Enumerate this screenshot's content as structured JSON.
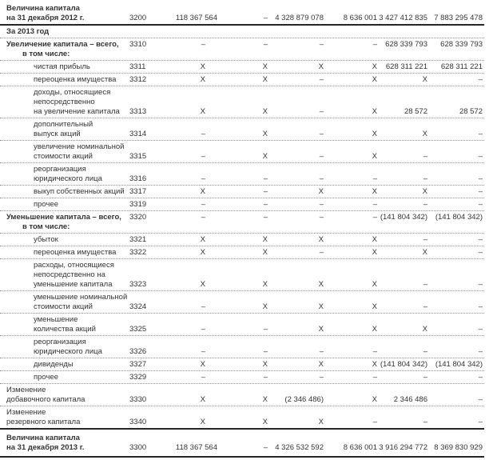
{
  "colors": {
    "text": "#333333",
    "rule_solid": "#262626",
    "rule_dotted": "#8f8f8f"
  },
  "table": {
    "rows": [
      {
        "code": "3200",
        "bold": true,
        "rule": "solid",
        "cls": "first",
        "lines": [
          "Величина капитала",
          "на 31 декабря 2012 г."
        ],
        "levels": [
          0,
          0
        ],
        "values": [
          "118 367 564",
          "–",
          "4 328 879 078",
          "8 636 001",
          "3 427 412 835",
          "7 883 295 478"
        ]
      },
      {
        "section": true,
        "bold": true,
        "lines": [
          "За 2013 год"
        ],
        "levels": [
          0
        ]
      },
      {
        "code": "3310",
        "bold": true,
        "valign": "top",
        "lines": [
          "Увеличение капитала – всего,",
          "в том числе:"
        ],
        "levels": [
          0,
          1
        ],
        "values": [
          "–",
          "–",
          "–",
          "–",
          "628 339 793",
          "628 339 793"
        ]
      },
      {
        "code": "3311",
        "lines": [
          "чистая прибыль"
        ],
        "levels": [
          2
        ],
        "values": [
          "X",
          "X",
          "X",
          "X",
          "628 311 221",
          "628 311 221"
        ]
      },
      {
        "code": "3312",
        "lines": [
          "переоценка имущества"
        ],
        "levels": [
          2
        ],
        "values": [
          "X",
          "X",
          "–",
          "X",
          "X",
          "–"
        ]
      },
      {
        "code": "3313",
        "lines": [
          "доходы, относящиеся",
          "непосредственно",
          "на увеличение капитала"
        ],
        "levels": [
          2,
          2,
          2
        ],
        "values": [
          "X",
          "X",
          "–",
          "X",
          "28 572",
          "28 572"
        ]
      },
      {
        "code": "3314",
        "lines": [
          "дополнительный",
          "выпуск акций"
        ],
        "levels": [
          2,
          2
        ],
        "values": [
          "–",
          "X",
          "–",
          "X",
          "X",
          "–"
        ]
      },
      {
        "code": "3315",
        "lines": [
          "увеличение номинальной",
          "стоимости акций"
        ],
        "levels": [
          2,
          2
        ],
        "values": [
          "–",
          "X",
          "–",
          "X",
          "–",
          "–"
        ]
      },
      {
        "code": "3316",
        "lines": [
          "реорганизация",
          "юридического лица"
        ],
        "levels": [
          2,
          2
        ],
        "values": [
          "–",
          "–",
          "–",
          "–",
          "–",
          "–"
        ]
      },
      {
        "code": "3317",
        "lines": [
          "выкуп собственных акций"
        ],
        "levels": [
          2
        ],
        "values": [
          "X",
          "–",
          "X",
          "X",
          "X",
          "–"
        ]
      },
      {
        "code": "3319",
        "lines": [
          "прочее"
        ],
        "levels": [
          2
        ],
        "values": [
          "–",
          "–",
          "–",
          "–",
          "–",
          "–"
        ]
      },
      {
        "code": "3320",
        "bold": true,
        "valign": "top",
        "lines": [
          "Уменьшение капитала – всего,",
          "в том числе:"
        ],
        "levels": [
          0,
          1
        ],
        "values": [
          "–",
          "–",
          "–",
          "–",
          "(141 804 342)",
          "(141 804 342)"
        ]
      },
      {
        "code": "3321",
        "lines": [
          "убыток"
        ],
        "levels": [
          2
        ],
        "values": [
          "X",
          "X",
          "X",
          "X",
          "–",
          "–"
        ]
      },
      {
        "code": "3322",
        "lines": [
          "переоценка имущества"
        ],
        "levels": [
          2
        ],
        "values": [
          "X",
          "X",
          "–",
          "X",
          "X",
          "–"
        ]
      },
      {
        "code": "3323",
        "lines": [
          "расходы, относящиеся",
          "непосредственно на",
          "уменьшение капитала"
        ],
        "levels": [
          2,
          2,
          2
        ],
        "values": [
          "X",
          "X",
          "X",
          "X",
          "–",
          "–"
        ]
      },
      {
        "code": "3324",
        "lines": [
          "уменьшение номинальной",
          "стоимости акций"
        ],
        "levels": [
          2,
          2
        ],
        "values": [
          "–",
          "X",
          "X",
          "X",
          "–",
          "–"
        ]
      },
      {
        "code": "3325",
        "lines": [
          "уменьшение",
          "количества акций"
        ],
        "levels": [
          2,
          2
        ],
        "values": [
          "–",
          "–",
          "X",
          "X",
          "X",
          "–"
        ]
      },
      {
        "code": "3326",
        "lines": [
          "реорганизация",
          "юридического лица"
        ],
        "levels": [
          2,
          2
        ],
        "values": [
          "–",
          "–",
          "–",
          "–",
          "–",
          "–"
        ]
      },
      {
        "code": "3327",
        "lines": [
          "дивиденды"
        ],
        "levels": [
          2
        ],
        "values": [
          "X",
          "X",
          "X",
          "X",
          "(141 804 342)",
          "(141 804 342)"
        ]
      },
      {
        "code": "3329",
        "lines": [
          "прочее"
        ],
        "levels": [
          2
        ],
        "values": [
          "–",
          "–",
          "–",
          "–",
          "–",
          "–"
        ]
      },
      {
        "code": "3330",
        "lines": [
          "Изменение",
          "добавочного капитала"
        ],
        "levels": [
          0,
          0
        ],
        "values": [
          "X",
          "X",
          "(2 346 486)",
          "X",
          "2 346 486",
          "–"
        ]
      },
      {
        "code": "3340",
        "rule": "solid",
        "lines": [
          "Изменение",
          "резервного капитала"
        ],
        "levels": [
          0,
          0
        ],
        "values": [
          "X",
          "X",
          "X",
          "–",
          "–",
          "–"
        ]
      },
      {
        "code": "3300",
        "bold": true,
        "rule": "solid",
        "cls": "last",
        "lines": [
          "Величина капитала",
          "на 31 декабря 2013 г."
        ],
        "levels": [
          0,
          0
        ],
        "values": [
          "118 367 564",
          "–",
          "4 326 532 592",
          "8 636 001",
          "3 916 294 772",
          "8 369 830 929"
        ]
      }
    ]
  }
}
